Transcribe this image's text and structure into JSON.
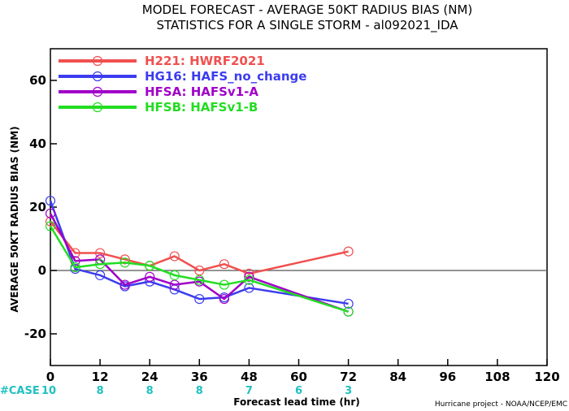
{
  "chart_data": {
    "type": "line",
    "title": "MODEL FORECAST - AVERAGE 50KT RADIUS BIAS (NM)",
    "subtitle": "STATISTICS FOR A SINGLE STORM - al092021_IDA",
    "xlabel": "Forecast lead time (hr)",
    "ylabel": "AVERAGE 50KT RADIUS BIAS (NM)",
    "xlim": [
      0,
      120
    ],
    "ylim": [
      -30,
      70
    ],
    "x_ticks": [
      0,
      12,
      24,
      36,
      48,
      60,
      72,
      84,
      96,
      108,
      120
    ],
    "y_ticks": [
      -20,
      0,
      20,
      40,
      60
    ],
    "zero_line": true,
    "legend_position": "top-left",
    "case_label": "#CASE",
    "cases": [
      {
        "x": 0,
        "n": "10"
      },
      {
        "x": 12,
        "n": "8"
      },
      {
        "x": 24,
        "n": "8"
      },
      {
        "x": 36,
        "n": "8"
      },
      {
        "x": 48,
        "n": "7"
      },
      {
        "x": 60,
        "n": "6"
      },
      {
        "x": 72,
        "n": "3"
      }
    ],
    "series": [
      {
        "name": "H221: HWRF2021",
        "color": "#f05050",
        "x": [
          0,
          6,
          12,
          18,
          24,
          30,
          36,
          42,
          48,
          72
        ],
        "values": [
          15.5,
          5.5,
          5.5,
          3.5,
          1.5,
          4.5,
          0,
          2,
          -1,
          6
        ]
      },
      {
        "name": "HG16: HAFS_no_change",
        "color": "#3c3cf0",
        "x": [
          0,
          6,
          12,
          18,
          24,
          30,
          36,
          42,
          48,
          72
        ],
        "values": [
          22,
          0.5,
          -1.5,
          -5,
          -3.5,
          -6,
          -9,
          -8.5,
          -5.5,
          -10.5
        ]
      },
      {
        "name": "HFSA: HAFSv1-A",
        "color": "#a000c8",
        "x": [
          0,
          6,
          12,
          18,
          24,
          30,
          36,
          42,
          48,
          72
        ],
        "values": [
          18,
          3,
          3.5,
          -4.5,
          -2,
          -4.5,
          -3.5,
          -9,
          -2,
          -13
        ]
      },
      {
        "name": "HFSB: HAFSv1-B",
        "color": "#22dd22",
        "x": [
          0,
          6,
          12,
          18,
          24,
          30,
          36,
          42,
          48,
          72
        ],
        "values": [
          14,
          1,
          2,
          2.5,
          1.5,
          -1.5,
          -3,
          -4.5,
          -3,
          -13
        ]
      }
    ],
    "credit": "Hurricane project - NOAA/NCEP/EMC"
  }
}
